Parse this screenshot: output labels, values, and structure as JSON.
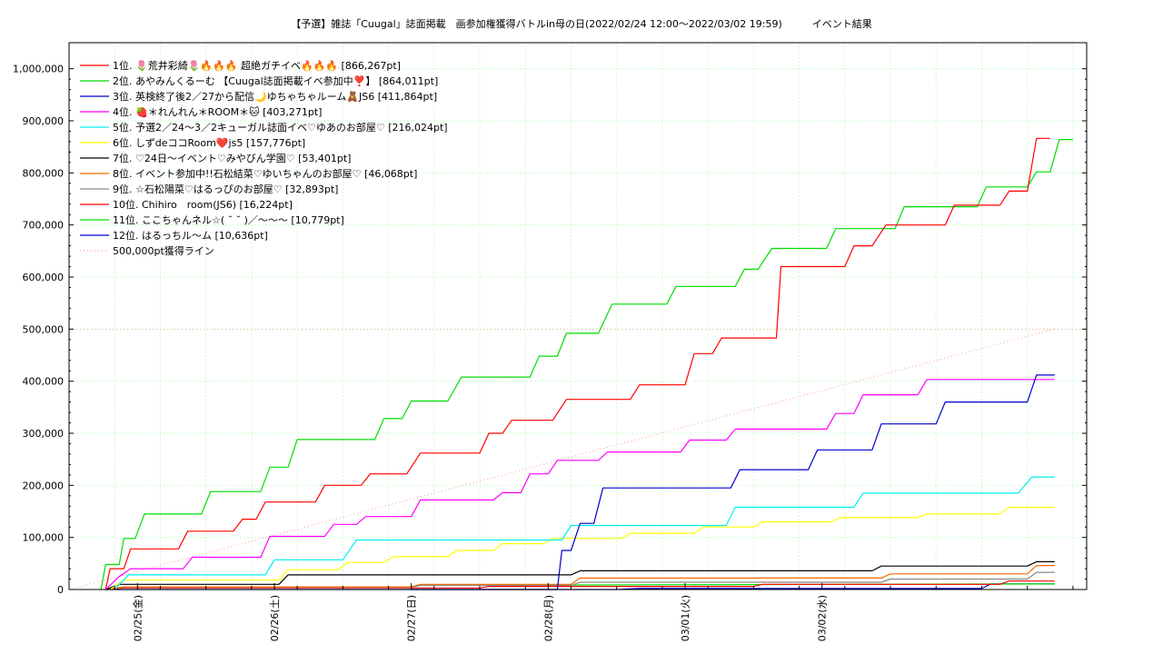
{
  "chart_data": {
    "type": "line",
    "title": "【予選】雑誌「Cuugal」誌面掲載　画参加権獲得バトルin母の日(2022/02/24 12:00～2022/03/02 19:59)　　　イベント結果",
    "xlabel": "",
    "ylabel": "",
    "x_range": [
      "2022-02-24 12:00",
      "2022-03-02 19:59"
    ],
    "ylim": [
      0,
      1050000
    ],
    "y_ticks": [
      0,
      100000,
      200000,
      300000,
      400000,
      500000,
      600000,
      700000,
      800000,
      900000,
      1000000
    ],
    "y_tick_labels": [
      "0",
      "100,000",
      "200,000",
      "300,000",
      "400,000",
      "500,000",
      "600,000",
      "700,000",
      "800,000",
      "900,000",
      "1,000,000"
    ],
    "x_tick_labels": [
      "02/25(金)",
      "02/26(土)",
      "02/27(日)",
      "02/28(月)",
      "03/01(火)",
      "03/02(水)"
    ],
    "grid": true,
    "legend_position": "top-left",
    "series": [
      {
        "name": "1位. 🌷荒井彩綺🌷🔥🔥🔥 超絶ガチイベ🔥🔥🔥 [866,267pt]",
        "color": "#ff0000",
        "points": [
          [
            0.8,
            0
          ],
          [
            0.9,
            40000
          ],
          [
            1.2,
            40000
          ],
          [
            1.35,
            78000
          ],
          [
            2.4,
            78000
          ],
          [
            2.6,
            112000
          ],
          [
            3.6,
            112000
          ],
          [
            3.8,
            135000
          ],
          [
            4.1,
            135000
          ],
          [
            4.3,
            168000
          ],
          [
            5.4,
            168000
          ],
          [
            5.6,
            200000
          ],
          [
            6.4,
            200000
          ],
          [
            6.6,
            222000
          ],
          [
            7.4,
            222000
          ],
          [
            7.7,
            262000
          ],
          [
            9.0,
            262000
          ],
          [
            9.2,
            300000
          ],
          [
            9.5,
            300000
          ],
          [
            9.7,
            325000
          ],
          [
            10.6,
            325000
          ],
          [
            10.9,
            365000
          ],
          [
            12.3,
            365000
          ],
          [
            12.5,
            393000
          ],
          [
            13.5,
            393000
          ],
          [
            13.7,
            453000
          ],
          [
            14.1,
            453000
          ],
          [
            14.3,
            483000
          ],
          [
            15.5,
            483000
          ],
          [
            15.6,
            620000
          ],
          [
            17.0,
            620000
          ],
          [
            17.2,
            660000
          ],
          [
            17.6,
            660000
          ],
          [
            17.9,
            700000
          ],
          [
            19.2,
            700000
          ],
          [
            19.4,
            738000
          ],
          [
            20.4,
            738000
          ],
          [
            20.6,
            765000
          ],
          [
            21.0,
            765000
          ],
          [
            21.2,
            866267
          ],
          [
            21.5,
            866267
          ]
        ]
      },
      {
        "name": "2位. あやみんくるーむ 【Cuugal誌面掲載イベ参加中❣️】 [864,011pt]",
        "color": "#00dd00",
        "points": [
          [
            0.7,
            0
          ],
          [
            0.8,
            48000
          ],
          [
            1.1,
            48000
          ],
          [
            1.2,
            98000
          ],
          [
            1.45,
            98000
          ],
          [
            1.65,
            145000
          ],
          [
            2.9,
            145000
          ],
          [
            3.1,
            188000
          ],
          [
            4.2,
            188000
          ],
          [
            4.4,
            235000
          ],
          [
            4.8,
            235000
          ],
          [
            5.0,
            288000
          ],
          [
            6.7,
            288000
          ],
          [
            6.9,
            328000
          ],
          [
            7.3,
            328000
          ],
          [
            7.5,
            362000
          ],
          [
            8.3,
            362000
          ],
          [
            8.6,
            408000
          ],
          [
            10.1,
            408000
          ],
          [
            10.3,
            448000
          ],
          [
            10.7,
            448000
          ],
          [
            10.9,
            492000
          ],
          [
            11.6,
            492000
          ],
          [
            11.9,
            548000
          ],
          [
            13.1,
            548000
          ],
          [
            13.3,
            582000
          ],
          [
            14.6,
            582000
          ],
          [
            14.8,
            615000
          ],
          [
            15.1,
            615000
          ],
          [
            15.4,
            655000
          ],
          [
            16.6,
            655000
          ],
          [
            16.8,
            693000
          ],
          [
            18.1,
            693000
          ],
          [
            18.3,
            735000
          ],
          [
            19.9,
            735000
          ],
          [
            20.1,
            773000
          ],
          [
            21.0,
            773000
          ],
          [
            21.2,
            802000
          ],
          [
            21.5,
            802000
          ],
          [
            21.7,
            864011
          ],
          [
            22.0,
            864011
          ]
        ]
      },
      {
        "name": "3位. 英検終了後2／27から配信🌙ゆちゃちゃルーム🧸JS6 [411,864pt]",
        "color": "#0000cc",
        "points": [
          [
            7.5,
            0
          ],
          [
            10.7,
            0
          ],
          [
            10.8,
            75000
          ],
          [
            11.0,
            75000
          ],
          [
            11.2,
            127000
          ],
          [
            11.5,
            127000
          ],
          [
            11.7,
            195000
          ],
          [
            14.5,
            195000
          ],
          [
            14.7,
            230000
          ],
          [
            16.2,
            230000
          ],
          [
            16.4,
            268000
          ],
          [
            17.6,
            268000
          ],
          [
            17.8,
            318000
          ],
          [
            19.0,
            318000
          ],
          [
            19.2,
            360000
          ],
          [
            21.0,
            360000
          ],
          [
            21.2,
            411864
          ],
          [
            21.6,
            411864
          ]
        ]
      },
      {
        "name": "4位. 🍓＊れんれん＊ROOM＊🐱 [403,271pt]",
        "color": "#ff00ff",
        "points": [
          [
            0.8,
            0
          ],
          [
            1.1,
            25000
          ],
          [
            1.35,
            40000
          ],
          [
            2.5,
            40000
          ],
          [
            2.7,
            62000
          ],
          [
            4.2,
            62000
          ],
          [
            4.4,
            102000
          ],
          [
            5.6,
            102000
          ],
          [
            5.8,
            125000
          ],
          [
            6.3,
            125000
          ],
          [
            6.5,
            140000
          ],
          [
            7.5,
            140000
          ],
          [
            7.7,
            172000
          ],
          [
            9.3,
            172000
          ],
          [
            9.5,
            186000
          ],
          [
            9.9,
            186000
          ],
          [
            10.1,
            222000
          ],
          [
            10.5,
            222000
          ],
          [
            10.7,
            248000
          ],
          [
            11.6,
            248000
          ],
          [
            11.8,
            264000
          ],
          [
            13.4,
            264000
          ],
          [
            13.6,
            287000
          ],
          [
            14.4,
            287000
          ],
          [
            14.6,
            308000
          ],
          [
            16.6,
            308000
          ],
          [
            16.8,
            338000
          ],
          [
            17.2,
            338000
          ],
          [
            17.4,
            374000
          ],
          [
            18.6,
            374000
          ],
          [
            18.8,
            403271
          ],
          [
            21.6,
            403271
          ]
        ]
      },
      {
        "name": "5位. 予選2／24〜3／2キューガル誌面イベ♡ゆあのお部屋♡ [216,024pt]",
        "color": "#00eeee",
        "points": [
          [
            1.0,
            0
          ],
          [
            1.3,
            28000
          ],
          [
            4.3,
            28000
          ],
          [
            4.5,
            57000
          ],
          [
            6.0,
            57000
          ],
          [
            6.3,
            95000
          ],
          [
            10.8,
            95000
          ],
          [
            11.0,
            123000
          ],
          [
            14.4,
            123000
          ],
          [
            14.6,
            158000
          ],
          [
            17.2,
            158000
          ],
          [
            17.4,
            185000
          ],
          [
            20.8,
            185000
          ],
          [
            21.1,
            216024
          ],
          [
            21.6,
            216024
          ]
        ]
      },
      {
        "name": "6位. しずdeココRoom❤️js5 [157,776pt]",
        "color": "#ffff00",
        "points": [
          [
            0.9,
            0
          ],
          [
            1.2,
            18000
          ],
          [
            4.6,
            18000
          ],
          [
            4.8,
            38000
          ],
          [
            5.9,
            38000
          ],
          [
            6.1,
            52000
          ],
          [
            6.9,
            52000
          ],
          [
            7.1,
            63000
          ],
          [
            8.3,
            63000
          ],
          [
            8.5,
            75000
          ],
          [
            9.3,
            75000
          ],
          [
            9.5,
            88000
          ],
          [
            10.4,
            88000
          ],
          [
            10.6,
            98000
          ],
          [
            12.1,
            98000
          ],
          [
            12.3,
            108000
          ],
          [
            13.7,
            108000
          ],
          [
            13.9,
            120000
          ],
          [
            15.0,
            120000
          ],
          [
            15.2,
            130000
          ],
          [
            16.7,
            130000
          ],
          [
            16.9,
            138000
          ],
          [
            18.6,
            138000
          ],
          [
            18.8,
            145000
          ],
          [
            20.4,
            145000
          ],
          [
            20.6,
            157776
          ],
          [
            21.6,
            157776
          ]
        ]
      },
      {
        "name": "7位. ♡24日〜イベント♡みやびん学園♡ [53,401pt]",
        "color": "#000000",
        "points": [
          [
            0.8,
            0
          ],
          [
            1.1,
            10000
          ],
          [
            4.6,
            10000
          ],
          [
            4.8,
            28000
          ],
          [
            11.0,
            28000
          ],
          [
            11.2,
            36000
          ],
          [
            17.6,
            36000
          ],
          [
            17.8,
            45000
          ],
          [
            21.0,
            45000
          ],
          [
            21.2,
            53401
          ],
          [
            21.6,
            53401
          ]
        ]
      },
      {
        "name": "8位. イベント参加中!!石松結菜♡ゆいちゃんのお部屋♡ [46,068pt]",
        "color": "#ff6600",
        "points": [
          [
            0.8,
            0
          ],
          [
            1.2,
            5000
          ],
          [
            7.5,
            5000
          ],
          [
            7.7,
            10000
          ],
          [
            11.0,
            10000
          ],
          [
            11.2,
            22000
          ],
          [
            17.8,
            22000
          ],
          [
            18.0,
            30000
          ],
          [
            21.0,
            30000
          ],
          [
            21.2,
            46068
          ],
          [
            21.6,
            46068
          ]
        ]
      },
      {
        "name": "9位. ☆石松陽菜♡はるっぴのお部屋♡ [32,893pt]",
        "color": "#888888",
        "points": [
          [
            0.8,
            0
          ],
          [
            1.2,
            4000
          ],
          [
            7.5,
            4000
          ],
          [
            7.7,
            8000
          ],
          [
            11.0,
            8000
          ],
          [
            11.2,
            14000
          ],
          [
            17.8,
            14000
          ],
          [
            18.0,
            20000
          ],
          [
            21.0,
            20000
          ],
          [
            21.2,
            32893
          ],
          [
            21.6,
            32893
          ]
        ]
      },
      {
        "name": "10位. Chihiro　room(JS6) [16,224pt]",
        "color": "#ff0000",
        "points": [
          [
            0.8,
            0
          ],
          [
            1.2,
            3000
          ],
          [
            9.0,
            3000
          ],
          [
            9.2,
            6000
          ],
          [
            15.0,
            6000
          ],
          [
            15.2,
            10000
          ],
          [
            20.4,
            10000
          ],
          [
            20.6,
            16224
          ],
          [
            21.6,
            16224
          ]
        ]
      },
      {
        "name": "11位. ここちゃんネル☆( ˘ ˘ )／〜〜〜 [10,779pt]",
        "color": "#00dd00",
        "points": [
          [
            0.8,
            0
          ],
          [
            1.2,
            5000
          ],
          [
            7.5,
            5000
          ],
          [
            7.7,
            8000
          ],
          [
            21.6,
            10779
          ]
        ]
      },
      {
        "name": "12位. はるっちル〜ム [10,636pt]",
        "color": "#0000cc",
        "points": [
          [
            0.8,
            0
          ],
          [
            12.0,
            0
          ],
          [
            12.5,
            2000
          ],
          [
            20.0,
            2000
          ],
          [
            20.2,
            10636
          ],
          [
            21.6,
            10636
          ]
        ]
      }
    ],
    "reference_line": {
      "name": "500,000pt獲得ライン",
      "color": "#ff9999",
      "from": [
        0,
        0
      ],
      "to": [
        21.6,
        500000
      ]
    }
  }
}
